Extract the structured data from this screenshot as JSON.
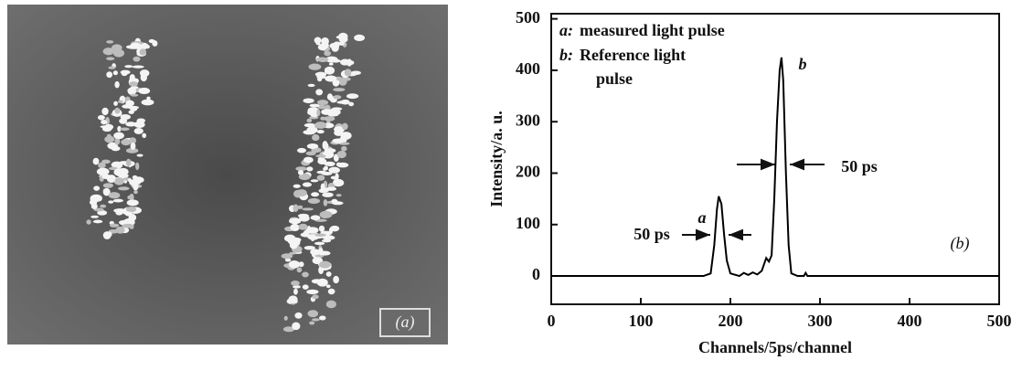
{
  "image_label": "(a)",
  "chart_data": {
    "type": "line",
    "x": [
      0,
      170,
      178,
      182,
      185,
      187,
      190,
      193,
      196,
      200,
      210,
      215,
      220,
      225,
      230,
      235,
      240,
      243,
      246,
      249,
      252,
      255,
      257,
      259,
      262,
      265,
      268,
      275,
      282,
      284,
      286,
      300,
      500
    ],
    "values": [
      0,
      0,
      5,
      60,
      130,
      155,
      140,
      80,
      30,
      5,
      0,
      6,
      2,
      7,
      3,
      10,
      35,
      28,
      40,
      150,
      300,
      400,
      425,
      380,
      200,
      60,
      5,
      0,
      0,
      6,
      0,
      0,
      0
    ],
    "color": "#000000",
    "xlim": [
      0,
      500
    ],
    "ylim": [
      -55,
      510
    ],
    "xticks": [
      0,
      100,
      200,
      300,
      400,
      500
    ],
    "yticks": [
      0,
      100,
      200,
      300,
      400,
      500
    ],
    "xlabel": "Channels/5ps/channel",
    "ylabel": "Intensity/a. u.",
    "key": [
      {
        "label": "a:",
        "text": [
          "measured light pulse"
        ]
      },
      {
        "label": "b:",
        "text": [
          "Reference light",
          "pulse"
        ]
      }
    ],
    "annotations": [
      "a",
      "b",
      "50 ps",
      "50 ps",
      "(b)"
    ]
  }
}
